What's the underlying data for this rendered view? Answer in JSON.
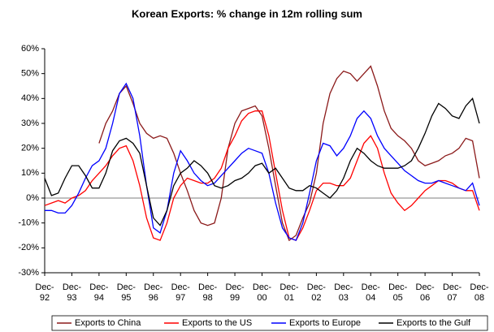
{
  "chart_data": {
    "type": "line",
    "title": "Korean Exports: % change in 12m rolling sum",
    "categories": [
      "Dec-92",
      null,
      null,
      null,
      "Dec-93",
      null,
      null,
      null,
      "Dec-94",
      null,
      null,
      null,
      "Dec-95",
      null,
      null,
      null,
      "Dec-96",
      null,
      null,
      null,
      "Dec-97",
      null,
      null,
      null,
      "Dec-98",
      null,
      null,
      null,
      "Dec-99",
      null,
      null,
      null,
      "Dec-00",
      null,
      null,
      null,
      "Dec-01",
      null,
      null,
      null,
      "Dec-02",
      null,
      null,
      null,
      "Dec-03",
      null,
      null,
      null,
      "Dec-04",
      null,
      null,
      null,
      "Dec-05",
      null,
      null,
      null,
      "Dec-06",
      null,
      null,
      null,
      "Dec-07",
      null,
      null,
      null,
      "Dec-08"
    ],
    "series": [
      {
        "name": "Exports to China",
        "color": "#8b1a1a",
        "values": [
          null,
          null,
          null,
          null,
          null,
          null,
          null,
          null,
          22,
          30,
          35,
          42,
          45,
          38,
          30,
          26,
          24,
          25,
          24,
          18,
          10,
          3,
          -5,
          -10,
          -11,
          -10,
          0,
          20,
          30,
          35,
          36,
          37,
          33,
          20,
          5,
          -10,
          -17,
          -15,
          -8,
          -2,
          10,
          30,
          42,
          48,
          51,
          50,
          47,
          50,
          53,
          45,
          35,
          28,
          25,
          23,
          20,
          15,
          13,
          14,
          15,
          17,
          18,
          20,
          24,
          23,
          8
        ]
      },
      {
        "name": "Exports to the US",
        "color": "#ff0000",
        "values": [
          -3,
          -2,
          -1,
          -2,
          0,
          1,
          3,
          7,
          10,
          13,
          17,
          20,
          21,
          15,
          5,
          -8,
          -16,
          -17,
          -10,
          0,
          5,
          8,
          7,
          6,
          6,
          8,
          12,
          20,
          25,
          31,
          34,
          35,
          35,
          25,
          10,
          -5,
          -16,
          -17,
          -12,
          -5,
          3,
          6,
          6,
          5,
          5,
          8,
          15,
          22,
          25,
          20,
          10,
          2,
          -2,
          -5,
          -3,
          0,
          3,
          5,
          7,
          7,
          6,
          4,
          3,
          3,
          -5
        ]
      },
      {
        "name": "Exports to Europe",
        "color": "#0000ff",
        "values": [
          -5,
          -5,
          -6,
          -6,
          -3,
          2,
          8,
          13,
          15,
          20,
          30,
          42,
          46,
          40,
          25,
          5,
          -12,
          -14,
          -5,
          10,
          19,
          15,
          10,
          7,
          5,
          6,
          9,
          12,
          15,
          18,
          20,
          19,
          18,
          10,
          -2,
          -12,
          -16,
          -17,
          -10,
          2,
          15,
          22,
          21,
          17,
          20,
          25,
          32,
          35,
          32,
          25,
          20,
          17,
          14,
          11,
          9,
          7,
          6,
          6,
          7,
          6,
          5,
          4,
          3,
          6,
          -3
        ]
      },
      {
        "name": "Exports to the Gulf",
        "color": "#000000",
        "values": [
          8,
          1,
          2,
          8,
          13,
          13,
          9,
          4,
          4,
          10,
          19,
          23,
          24,
          22,
          18,
          5,
          -8,
          -11,
          -5,
          5,
          10,
          12,
          15,
          13,
          10,
          5,
          4,
          5,
          7,
          8,
          10,
          13,
          14,
          10,
          12,
          8,
          4,
          3,
          3,
          5,
          4,
          2,
          0,
          3,
          8,
          15,
          20,
          18,
          15,
          13,
          12,
          12,
          12,
          13,
          15,
          20,
          26,
          33,
          38,
          36,
          33,
          32,
          37,
          40,
          30
        ]
      }
    ],
    "ylim": [
      -30,
      60
    ],
    "yticks": [
      {
        "value": -30,
        "label": "-30%"
      },
      {
        "value": -20,
        "label": "-20%"
      },
      {
        "value": -10,
        "label": "-10%"
      },
      {
        "value": 0,
        "label": "0%"
      },
      {
        "value": 10,
        "label": "10%"
      },
      {
        "value": 20,
        "label": "20%"
      },
      {
        "value": 30,
        "label": "30%"
      },
      {
        "value": 40,
        "label": "40%"
      },
      {
        "value": 50,
        "label": "50%"
      },
      {
        "value": 60,
        "label": "60%"
      }
    ]
  }
}
